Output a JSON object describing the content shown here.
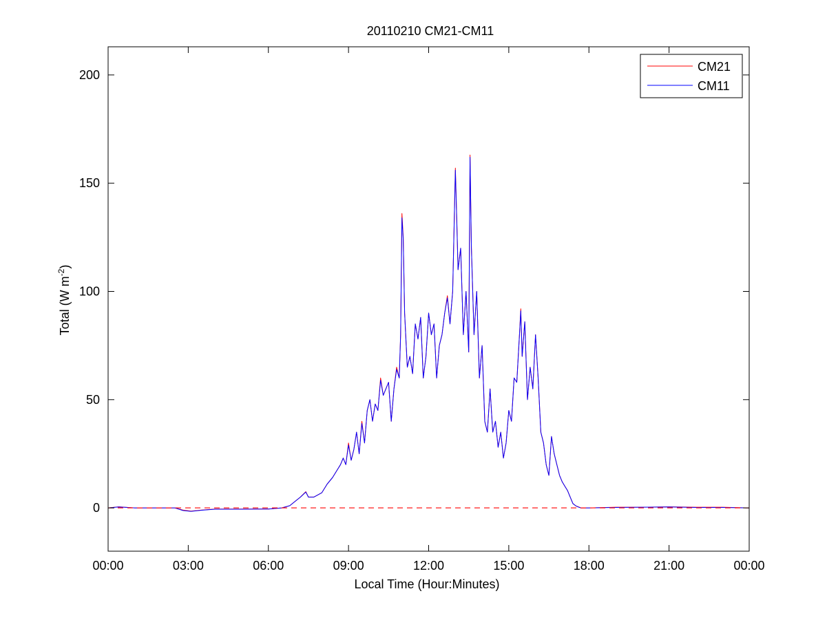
{
  "chart_data": {
    "type": "line",
    "title": "20110210 CM21-CM11",
    "xlabel": "Local Time (Hour:Minutes)",
    "ylabel": {
      "prefix": "Total (W m",
      "superscript": "-2",
      "suffix": ")"
    },
    "x_unit": "hours since local midnight",
    "xlim": [
      0,
      24
    ],
    "ylim": [
      -20,
      213
    ],
    "xticks": [
      0,
      3,
      6,
      9,
      12,
      15,
      18,
      21,
      24
    ],
    "xtick_labels": [
      "00:00",
      "03:00",
      "06:00",
      "09:00",
      "12:00",
      "15:00",
      "18:00",
      "21:00",
      "00:00"
    ],
    "yticks": [
      0,
      50,
      100,
      150,
      200
    ],
    "ytick_labels": [
      "0",
      "50",
      "100",
      "150",
      "200"
    ],
    "grid": false,
    "legend_position": "top-right",
    "reference_line": {
      "y": 0,
      "style": "dashed",
      "color": "#ff0000"
    },
    "series": [
      {
        "name": "CM21",
        "color": "#ff0000",
        "x": [
          0,
          0.4,
          1.0,
          2.5,
          2.8,
          3.1,
          3.5,
          4.0,
          5.0,
          6.0,
          6.5,
          6.8,
          7.0,
          7.2,
          7.4,
          7.5,
          7.7,
          8.0,
          8.2,
          8.4,
          8.6,
          8.7,
          8.8,
          8.9,
          9.0,
          9.1,
          9.2,
          9.3,
          9.4,
          9.5,
          9.6,
          9.7,
          9.8,
          9.9,
          10.0,
          10.1,
          10.2,
          10.3,
          10.4,
          10.5,
          10.6,
          10.7,
          10.8,
          10.9,
          10.95,
          11.0,
          11.05,
          11.1,
          11.2,
          11.3,
          11.4,
          11.5,
          11.6,
          11.7,
          11.8,
          11.9,
          12.0,
          12.1,
          12.2,
          12.3,
          12.4,
          12.5,
          12.6,
          12.7,
          12.8,
          12.9,
          13.0,
          13.05,
          13.1,
          13.2,
          13.3,
          13.4,
          13.5,
          13.55,
          13.6,
          13.7,
          13.8,
          13.9,
          14.0,
          14.1,
          14.2,
          14.3,
          14.4,
          14.5,
          14.6,
          14.7,
          14.8,
          14.9,
          15.0,
          15.1,
          15.2,
          15.3,
          15.4,
          15.45,
          15.5,
          15.6,
          15.7,
          15.8,
          15.9,
          16.0,
          16.1,
          16.2,
          16.3,
          16.4,
          16.5,
          16.6,
          16.7,
          16.8,
          16.9,
          17.0,
          17.1,
          17.2,
          17.3,
          17.4,
          17.5,
          17.6,
          17.7,
          18.0,
          19.0,
          20.0,
          21.0,
          22.0,
          23.0,
          24.0
        ],
        "values": [
          0,
          0.5,
          0,
          0,
          -1,
          -1.5,
          -1,
          -0.5,
          -0.5,
          -0.5,
          0,
          1,
          3,
          5,
          7.5,
          5,
          5,
          7,
          11,
          14,
          18,
          20,
          23,
          20,
          30,
          22,
          27,
          35,
          25,
          40,
          30,
          45,
          50,
          40,
          48,
          45,
          60,
          52,
          55,
          58,
          40,
          55,
          65,
          60,
          80,
          136,
          125,
          90,
          65,
          70,
          62,
          85,
          78,
          88,
          60,
          70,
          90,
          80,
          85,
          60,
          75,
          80,
          90,
          98,
          85,
          100,
          157,
          135,
          110,
          120,
          80,
          100,
          72,
          163,
          120,
          80,
          100,
          60,
          75,
          40,
          35,
          55,
          35,
          40,
          28,
          35,
          23,
          30,
          45,
          40,
          60,
          58,
          80,
          92,
          70,
          86,
          50,
          65,
          55,
          80,
          60,
          35,
          30,
          20,
          15,
          33,
          25,
          20,
          15,
          12,
          10,
          8,
          5,
          2,
          1,
          0.5,
          0,
          0,
          0.3,
          0.3,
          0.5,
          0.3,
          0.3,
          0
        ]
      },
      {
        "name": "CM11",
        "color": "#0000ff",
        "x": [
          0,
          0.4,
          1.0,
          2.5,
          2.8,
          3.1,
          3.5,
          4.0,
          5.0,
          6.0,
          6.5,
          6.8,
          7.0,
          7.2,
          7.4,
          7.5,
          7.7,
          8.0,
          8.2,
          8.4,
          8.6,
          8.7,
          8.8,
          8.9,
          9.0,
          9.1,
          9.2,
          9.3,
          9.4,
          9.5,
          9.6,
          9.7,
          9.8,
          9.9,
          10.0,
          10.1,
          10.2,
          10.3,
          10.4,
          10.5,
          10.6,
          10.7,
          10.8,
          10.9,
          10.95,
          11.0,
          11.05,
          11.1,
          11.2,
          11.3,
          11.4,
          11.5,
          11.6,
          11.7,
          11.8,
          11.9,
          12.0,
          12.1,
          12.2,
          12.3,
          12.4,
          12.5,
          12.6,
          12.7,
          12.8,
          12.9,
          13.0,
          13.05,
          13.1,
          13.2,
          13.3,
          13.4,
          13.5,
          13.55,
          13.6,
          13.7,
          13.8,
          13.9,
          14.0,
          14.1,
          14.2,
          14.3,
          14.4,
          14.5,
          14.6,
          14.7,
          14.8,
          14.9,
          15.0,
          15.1,
          15.2,
          15.3,
          15.4,
          15.45,
          15.5,
          15.6,
          15.7,
          15.8,
          15.9,
          16.0,
          16.1,
          16.2,
          16.3,
          16.4,
          16.5,
          16.6,
          16.7,
          16.8,
          16.9,
          17.0,
          17.1,
          17.2,
          17.3,
          17.4,
          17.5,
          17.6,
          17.7,
          18.0,
          19.0,
          20.0,
          21.0,
          22.0,
          23.0,
          24.0
        ],
        "values": [
          0,
          0.4,
          0,
          0,
          -1.2,
          -1.6,
          -1.1,
          -0.6,
          -0.6,
          -0.5,
          0,
          1,
          3,
          5,
          7.3,
          5,
          5,
          7,
          11,
          14,
          18,
          20,
          23,
          20,
          29,
          22,
          27,
          35,
          25,
          39,
          30,
          45,
          50,
          40,
          48,
          45,
          59,
          52,
          55,
          58,
          40,
          55,
          64,
          60,
          80,
          134,
          124,
          90,
          65,
          70,
          62,
          85,
          78,
          88,
          60,
          70,
          90,
          80,
          85,
          60,
          75,
          80,
          90,
          97,
          85,
          100,
          156,
          134,
          110,
          120,
          80,
          100,
          72,
          162,
          120,
          80,
          100,
          60,
          75,
          40,
          35,
          55,
          35,
          40,
          28,
          35,
          23,
          30,
          45,
          40,
          60,
          58,
          80,
          91,
          70,
          86,
          50,
          65,
          55,
          80,
          60,
          35,
          30,
          20,
          15,
          33,
          25,
          20,
          15,
          12,
          10,
          8,
          5,
          2,
          1,
          0.4,
          0,
          0,
          0.2,
          0.3,
          0.4,
          0.2,
          0.2,
          0
        ]
      }
    ]
  }
}
